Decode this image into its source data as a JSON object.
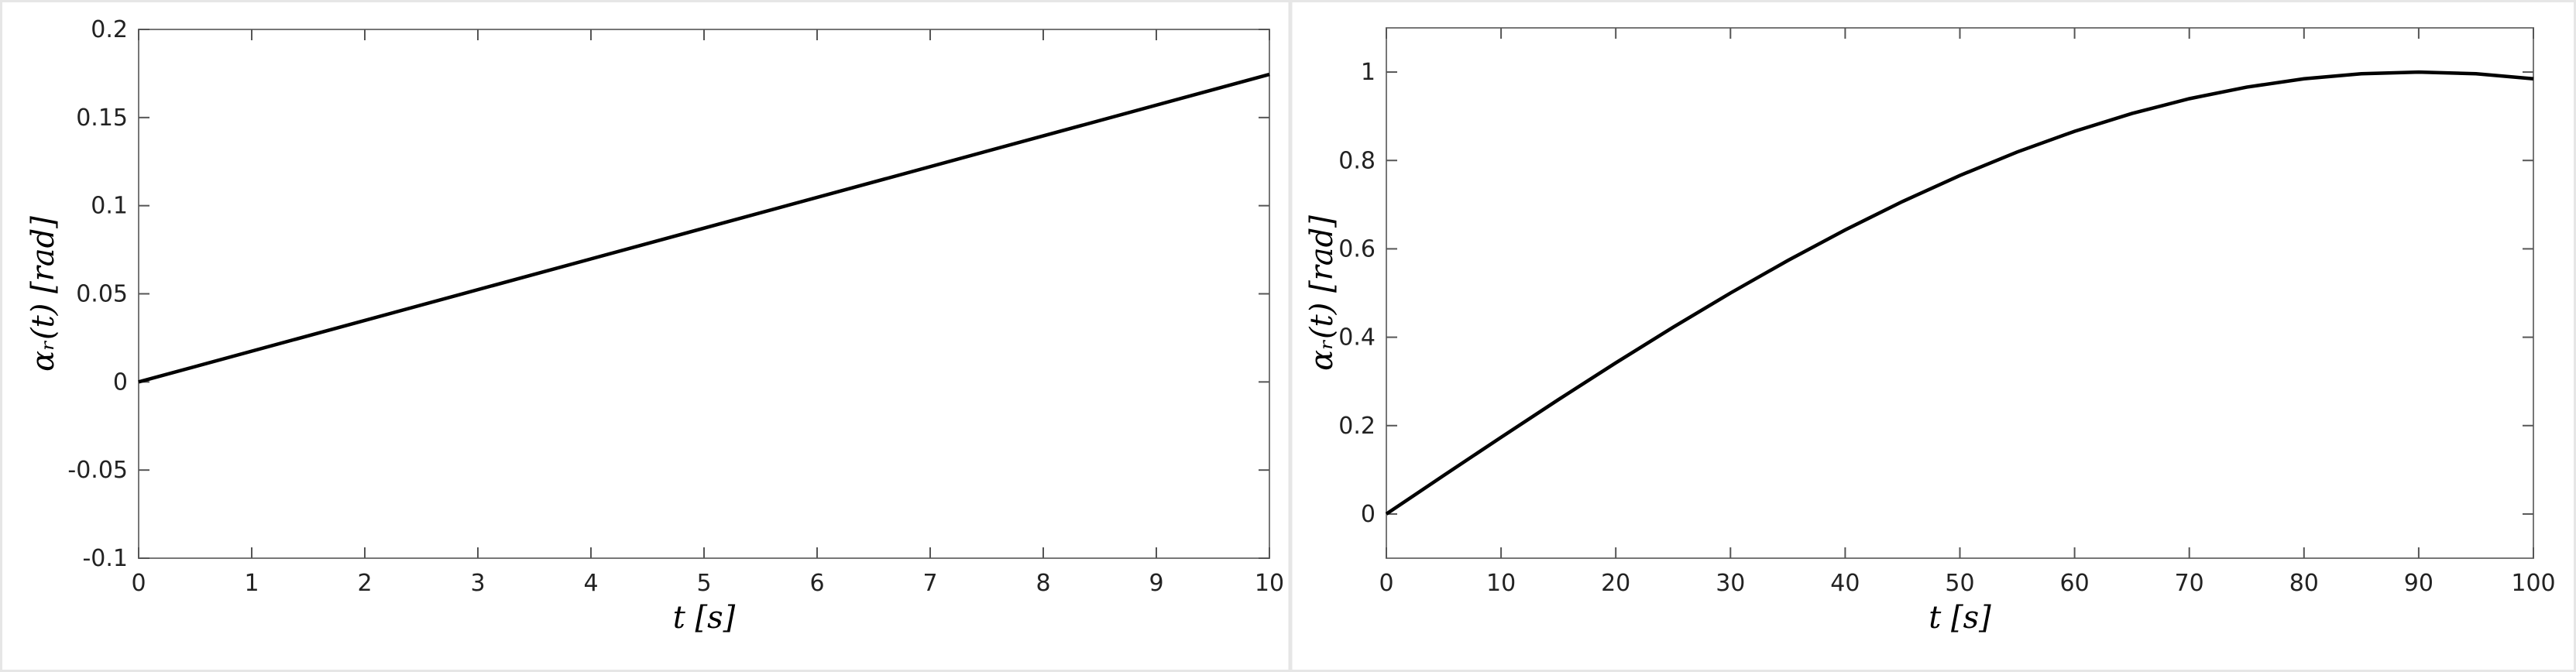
{
  "chart_data": [
    {
      "type": "line",
      "xlabel": "t [s]",
      "ylabel": "αᵣ(t) [rad]",
      "x": [
        0,
        10
      ],
      "values": [
        0,
        0.1745
      ],
      "color": "#000000",
      "xlim": [
        0,
        10
      ],
      "xticks": [
        0,
        1,
        2,
        3,
        4,
        5,
        6,
        7,
        8,
        9,
        10
      ],
      "ylim": [
        -0.1,
        0.2
      ],
      "yticks": [
        -0.1,
        -0.05,
        0,
        0.05,
        0.1,
        0.15,
        0.2
      ]
    },
    {
      "type": "line",
      "xlabel": "t [s]",
      "ylabel": "αᵣ(t) [rad]",
      "x": [
        0,
        5,
        10,
        15,
        20,
        25,
        30,
        35,
        40,
        45,
        50,
        55,
        60,
        65,
        70,
        75,
        80,
        85,
        90,
        95,
        100
      ],
      "values": [
        0,
        0.0872,
        0.1736,
        0.2588,
        0.342,
        0.4226,
        0.5,
        0.5736,
        0.6428,
        0.7071,
        0.766,
        0.8192,
        0.866,
        0.9063,
        0.9397,
        0.9659,
        0.9848,
        0.9962,
        1,
        0.9962,
        0.9848
      ],
      "color": "#000000",
      "xlim": [
        0,
        100
      ],
      "xticks": [
        0,
        10,
        20,
        30,
        40,
        50,
        60,
        70,
        80,
        90,
        100
      ],
      "ylim": [
        -0.1,
        1.1
      ],
      "yticks": [
        0,
        0.2,
        0.4,
        0.6,
        0.8,
        1
      ]
    }
  ]
}
